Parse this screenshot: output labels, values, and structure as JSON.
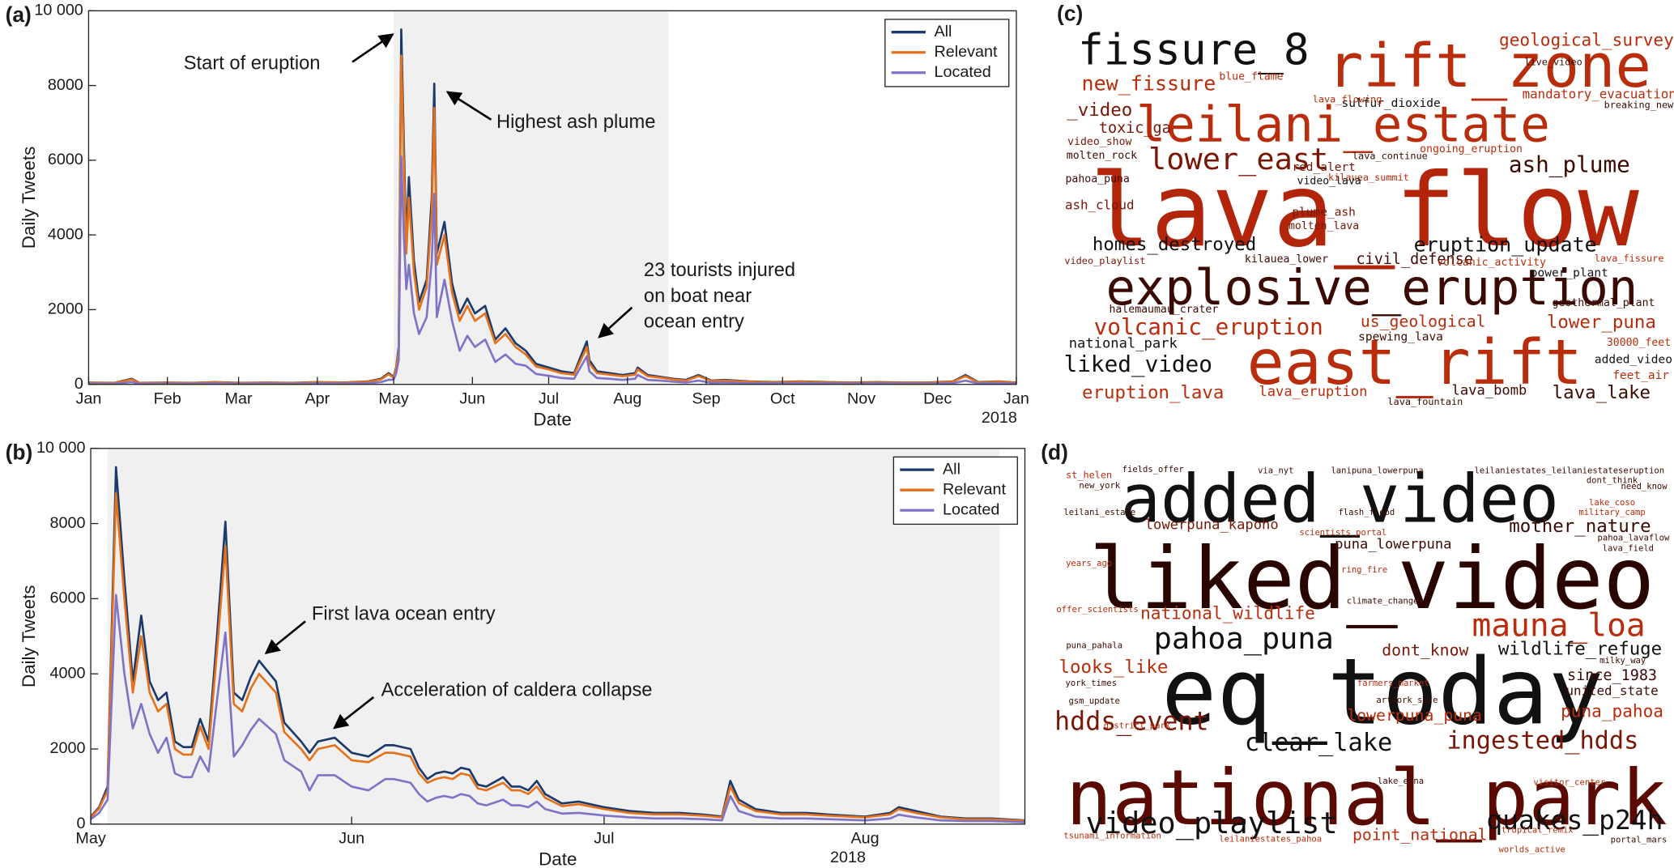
{
  "chart_data": [
    {
      "type": "line",
      "panel_label": "(a)",
      "x_label": "Date",
      "y_label": "Daily Tweets",
      "xlim": [
        0,
        365
      ],
      "ylim": [
        0,
        10000
      ],
      "xticks": [
        {
          "value": 0,
          "label": "Jan"
        },
        {
          "value": 31,
          "label": "Feb"
        },
        {
          "value": 59,
          "label": "Mar"
        },
        {
          "value": 90,
          "label": "Apr"
        },
        {
          "value": 120,
          "label": "May"
        },
        {
          "value": 151,
          "label": "Jun"
        },
        {
          "value": 181,
          "label": "Jul"
        },
        {
          "value": 212,
          "label": "Aug"
        },
        {
          "value": 243,
          "label": "Sep"
        },
        {
          "value": 273,
          "label": "Oct"
        },
        {
          "value": 304,
          "label": "Nov"
        },
        {
          "value": 334,
          "label": "Dec"
        },
        {
          "value": 365,
          "label": "Jan"
        }
      ],
      "year_label": "2018",
      "yticks": [
        0,
        2000,
        4000,
        6000,
        8000,
        {
          "value": 10000,
          "label": "10 000"
        }
      ],
      "shaded_range": [
        120,
        228
      ],
      "shade_color": "#f0f0f0",
      "legend": "upper right",
      "annotations": [
        [
          "Start of eruption"
        ],
        [
          "Highest ash plume"
        ],
        [
          "23 tourists injured",
          "on boat near",
          "ocean entry"
        ]
      ],
      "x": [
        0,
        10,
        17,
        20,
        30,
        40,
        50,
        60,
        70,
        80,
        90,
        100,
        110,
        115,
        118,
        120,
        121,
        122,
        123,
        124,
        125,
        126,
        128,
        130,
        133,
        135,
        136,
        137,
        140,
        143,
        146,
        149,
        152,
        156,
        160,
        164,
        168,
        172,
        176,
        181,
        186,
        191,
        196,
        197,
        200,
        205,
        210,
        215,
        216,
        220,
        225,
        230,
        235,
        240,
        245,
        250,
        260,
        270,
        280,
        290,
        300,
        310,
        320,
        330,
        340,
        345,
        350,
        358,
        365
      ],
      "series": [
        {
          "name": "All",
          "color": "#1b3a6b",
          "values": [
            50,
            40,
            150,
            40,
            50,
            40,
            60,
            40,
            50,
            40,
            60,
            50,
            80,
            150,
            300,
            200,
            450,
            1000,
            9500,
            6500,
            3800,
            5550,
            3300,
            2200,
            2800,
            5000,
            8050,
            3500,
            4350,
            2700,
            1900,
            2300,
            1900,
            2100,
            1200,
            1500,
            1100,
            900,
            550,
            450,
            350,
            300,
            1150,
            650,
            350,
            300,
            250,
            300,
            450,
            250,
            200,
            150,
            120,
            250,
            100,
            120,
            80,
            60,
            80,
            60,
            50,
            60,
            50,
            50,
            80,
            250,
            60,
            80,
            50
          ]
        },
        {
          "name": "Relevant",
          "color": "#e5711b",
          "values": [
            45,
            35,
            130,
            35,
            45,
            35,
            55,
            35,
            45,
            35,
            55,
            45,
            70,
            130,
            270,
            180,
            420,
            900,
            8800,
            6000,
            3500,
            5000,
            3000,
            2000,
            2600,
            4600,
            7400,
            3200,
            4000,
            2450,
            1700,
            2100,
            1700,
            1900,
            1100,
            1350,
            1000,
            800,
            480,
            400,
            300,
            260,
            1000,
            560,
            300,
            260,
            220,
            260,
            400,
            220,
            180,
            130,
            100,
            220,
            90,
            100,
            70,
            50,
            70,
            50,
            45,
            50,
            45,
            45,
            70,
            220,
            50,
            70,
            45
          ]
        },
        {
          "name": "Located",
          "color": "#7f73c6",
          "values": [
            20,
            15,
            60,
            15,
            20,
            15,
            25,
            15,
            20,
            15,
            25,
            20,
            30,
            60,
            120,
            130,
            300,
            650,
            6100,
            4000,
            2550,
            3200,
            1900,
            1350,
            1800,
            3300,
            5100,
            1800,
            2800,
            1700,
            900,
            1300,
            1000,
            1200,
            600,
            800,
            550,
            500,
            280,
            230,
            170,
            150,
            750,
            350,
            170,
            150,
            120,
            150,
            250,
            120,
            100,
            70,
            50,
            100,
            40,
            50,
            30,
            25,
            30,
            25,
            20,
            25,
            20,
            20,
            30,
            100,
            25,
            30,
            20
          ]
        }
      ]
    },
    {
      "type": "line",
      "panel_label": "(b)",
      "x_label": "Date",
      "y_label": "Daily Tweets",
      "xlim": [
        120,
        231
      ],
      "ylim": [
        0,
        10000
      ],
      "xticks": [
        {
          "value": 120,
          "label": "May"
        },
        {
          "value": 151,
          "label": "Jun"
        },
        {
          "value": 181,
          "label": "Jul"
        },
        {
          "value": 212,
          "label": "Aug"
        }
      ],
      "year_label": "2018",
      "yticks": [
        0,
        2000,
        4000,
        6000,
        8000,
        {
          "value": 10000,
          "label": "10 000"
        }
      ],
      "shaded_range": [
        122,
        228
      ],
      "shade_color": "#f0f0f0",
      "legend": "upper right",
      "annotations": [
        [
          "First lava ocean entry"
        ],
        [
          "Acceleration of caldera collapse"
        ]
      ],
      "x": [
        120,
        121,
        122,
        123,
        124,
        125,
        126,
        127,
        128,
        129,
        130,
        131,
        132,
        133,
        134,
        135,
        136,
        137,
        138,
        139,
        140,
        142,
        143,
        145,
        146,
        147,
        149,
        151,
        153,
        155,
        156,
        158,
        159,
        160,
        161,
        162,
        163,
        164,
        165,
        166,
        167,
        169,
        170,
        171,
        172,
        173,
        174,
        176,
        178,
        181,
        184,
        187,
        190,
        193,
        195,
        196,
        197,
        199,
        202,
        205,
        208,
        212,
        215,
        216,
        218,
        221,
        224,
        227,
        231
      ],
      "series": [
        {
          "name": "All",
          "color": "#1b3a6b",
          "values": [
            200,
            450,
            1000,
            9500,
            6500,
            3800,
            5550,
            3800,
            3300,
            3500,
            2200,
            2050,
            2050,
            2800,
            2200,
            5000,
            8050,
            3500,
            3300,
            3900,
            4350,
            3800,
            2700,
            2200,
            1900,
            2200,
            2300,
            1900,
            1800,
            2100,
            2100,
            2000,
            1500,
            1200,
            1350,
            1400,
            1350,
            1500,
            1450,
            1050,
            1000,
            1250,
            1000,
            1000,
            900,
            1150,
            800,
            550,
            600,
            450,
            350,
            300,
            300,
            250,
            200,
            1150,
            650,
            400,
            300,
            300,
            250,
            200,
            300,
            450,
            350,
            200,
            150,
            150,
            100
          ]
        },
        {
          "name": "Relevant",
          "color": "#e5711b",
          "values": [
            180,
            420,
            900,
            8800,
            6000,
            3500,
            5000,
            3500,
            3000,
            3200,
            2000,
            1850,
            1850,
            2600,
            2000,
            4600,
            7400,
            3200,
            3000,
            3600,
            4000,
            3500,
            2450,
            2000,
            1700,
            2000,
            2100,
            1700,
            1650,
            1900,
            1900,
            1800,
            1350,
            1100,
            1200,
            1250,
            1200,
            1350,
            1300,
            950,
            900,
            1100,
            900,
            900,
            800,
            1000,
            700,
            480,
            530,
            400,
            300,
            260,
            260,
            220,
            180,
            1000,
            560,
            350,
            260,
            260,
            220,
            180,
            260,
            400,
            300,
            180,
            130,
            130,
            90
          ]
        },
        {
          "name": "Located",
          "color": "#7f73c6",
          "values": [
            130,
            300,
            650,
            6100,
            4000,
            2550,
            3200,
            2400,
            1900,
            2300,
            1350,
            1250,
            1250,
            1800,
            1400,
            3300,
            5100,
            1800,
            2100,
            2500,
            2800,
            2400,
            1700,
            1400,
            900,
            1300,
            1300,
            1000,
            900,
            1200,
            1200,
            1100,
            800,
            600,
            700,
            750,
            700,
            800,
            750,
            550,
            500,
            650,
            500,
            500,
            450,
            600,
            400,
            280,
            300,
            230,
            180,
            150,
            150,
            130,
            100,
            750,
            350,
            200,
            150,
            150,
            130,
            100,
            150,
            250,
            180,
            100,
            80,
            80,
            50
          ]
        }
      ]
    },
    {
      "type": "wordcloud",
      "panel_label": "(c)",
      "words": [
        "lava_flow",
        "explosive_eruption",
        "east_rift",
        "rift_zone",
        "leilani_estate",
        "fissure_8",
        "lower_east",
        "new_fissure",
        "geological_survey",
        "ash_plume",
        "homes_destroyed",
        "eruption_update",
        "volcanic_eruption",
        "liked_video",
        "eruption_lava",
        "lower_puna",
        "lava_lake",
        "us_geological",
        "civil_defense",
        "national_park",
        "mandatory_evacuation",
        "_video",
        "toxic_ga",
        "sulfur_dioxide",
        "geothermal_plant",
        "power_plant",
        "30000_feet",
        "added_video",
        "feet_air",
        "lava_bomb",
        "lava_fountain",
        "lava_eruption",
        "spewing_lava",
        "halemaumau_crater",
        "volcanic_activity",
        "kilauea_lower",
        "ash_cloud",
        "red_alert",
        "plume_ash",
        "molten_lava",
        "lava_continue",
        "video_show",
        "molten_rock",
        "pahoa_puna",
        "blue_flame",
        "live_video",
        "ongoing_eruption",
        "kilauea_summit",
        "video_playlist",
        "lava_fissure",
        "video_lava",
        "lava_flowing",
        "breaking_new"
      ]
    },
    {
      "type": "wordcloud",
      "panel_label": "(d)",
      "words": [
        "added_video",
        "liked_video",
        "eq_today",
        "national_park",
        "video_playlist",
        "quakes_p24h",
        "clear_lake",
        "ingested_hdds",
        "hdds_event",
        "pahoa_puna",
        "mauna_loa",
        "wildlife_refuge",
        "national_wildlife",
        "dont_know",
        "looks_like",
        "mother_nature",
        "lowerpuna_kapoho",
        "puna_lowerpuna",
        "since_1983",
        "united_state",
        "puna_pahoa",
        "lowerpuna_puna",
        "point_national",
        "st_helen",
        "new_york",
        "fields_offer",
        "via_nyt",
        "lanipuna_lowerpuna",
        "leilaniestates_leilaniestateseruption",
        "leilani_estate",
        "flash_flood",
        "scientists_portal",
        "years_ago",
        "ring_fire",
        "climate_change",
        "offer_scientists",
        "puna_pahala",
        "york_times",
        "gsm_update",
        "artwork_sale",
        "district_park",
        "tsunami_information",
        "leilaniestates_pahoa",
        "visitor_center",
        "portal_mars",
        "worlds_active",
        "tropical_remix",
        "lake_etna",
        "farmers_market",
        "milky_way",
        "pahoa_lavaflow",
        "lava_field",
        "need_know",
        "dont_think",
        "military_camp",
        "lake_coso"
      ]
    }
  ]
}
